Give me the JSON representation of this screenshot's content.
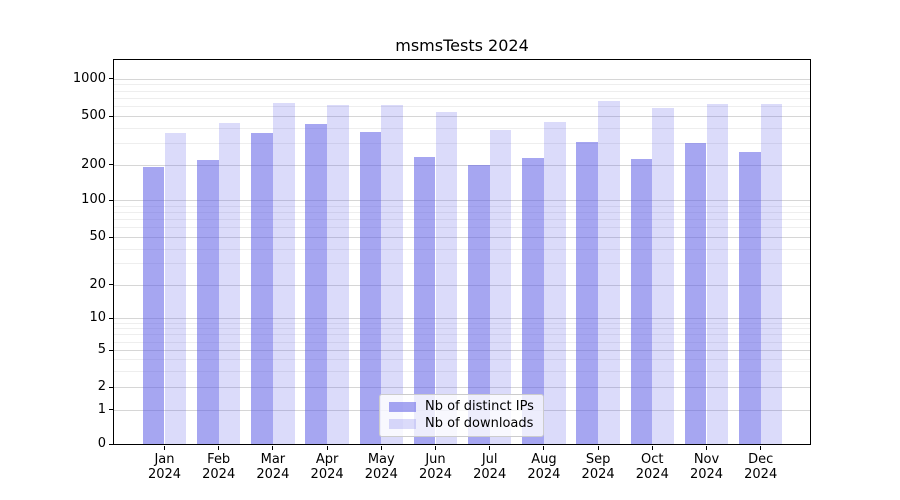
{
  "title": "msmsTests 2024",
  "chart_data": {
    "type": "bar",
    "title": "msmsTests 2024",
    "categories": [
      "Jan 2024",
      "Feb 2024",
      "Mar 2024",
      "Apr 2024",
      "May 2024",
      "Jun 2024",
      "Jul 2024",
      "Aug 2024",
      "Sep 2024",
      "Oct 2024",
      "Nov 2024",
      "Dec 2024"
    ],
    "series": [
      {
        "name": "Nb of distinct IPs",
        "color": "rgba(93,93,230,0.55)",
        "values": [
          190,
          218,
          365,
          430,
          370,
          232,
          200,
          227,
          308,
          222,
          300,
          252
        ]
      },
      {
        "name": "Nb of downloads",
        "color": "rgba(93,93,230,0.22)",
        "values": [
          360,
          437,
          640,
          615,
          615,
          535,
          385,
          448,
          665,
          585,
          630,
          620
        ]
      }
    ],
    "xlabel": "",
    "ylabel": "",
    "yscale": "symlog",
    "yticks": [
      0,
      1,
      2,
      5,
      10,
      20,
      50,
      100,
      200,
      500,
      1000
    ],
    "minor_yticks": [
      3,
      4,
      6,
      7,
      8,
      9,
      30,
      40,
      60,
      70,
      80,
      90,
      300,
      400,
      600,
      700,
      800,
      900
    ],
    "ylim": [
      0,
      1500
    ],
    "grid": true,
    "legend_position": "lower center"
  }
}
